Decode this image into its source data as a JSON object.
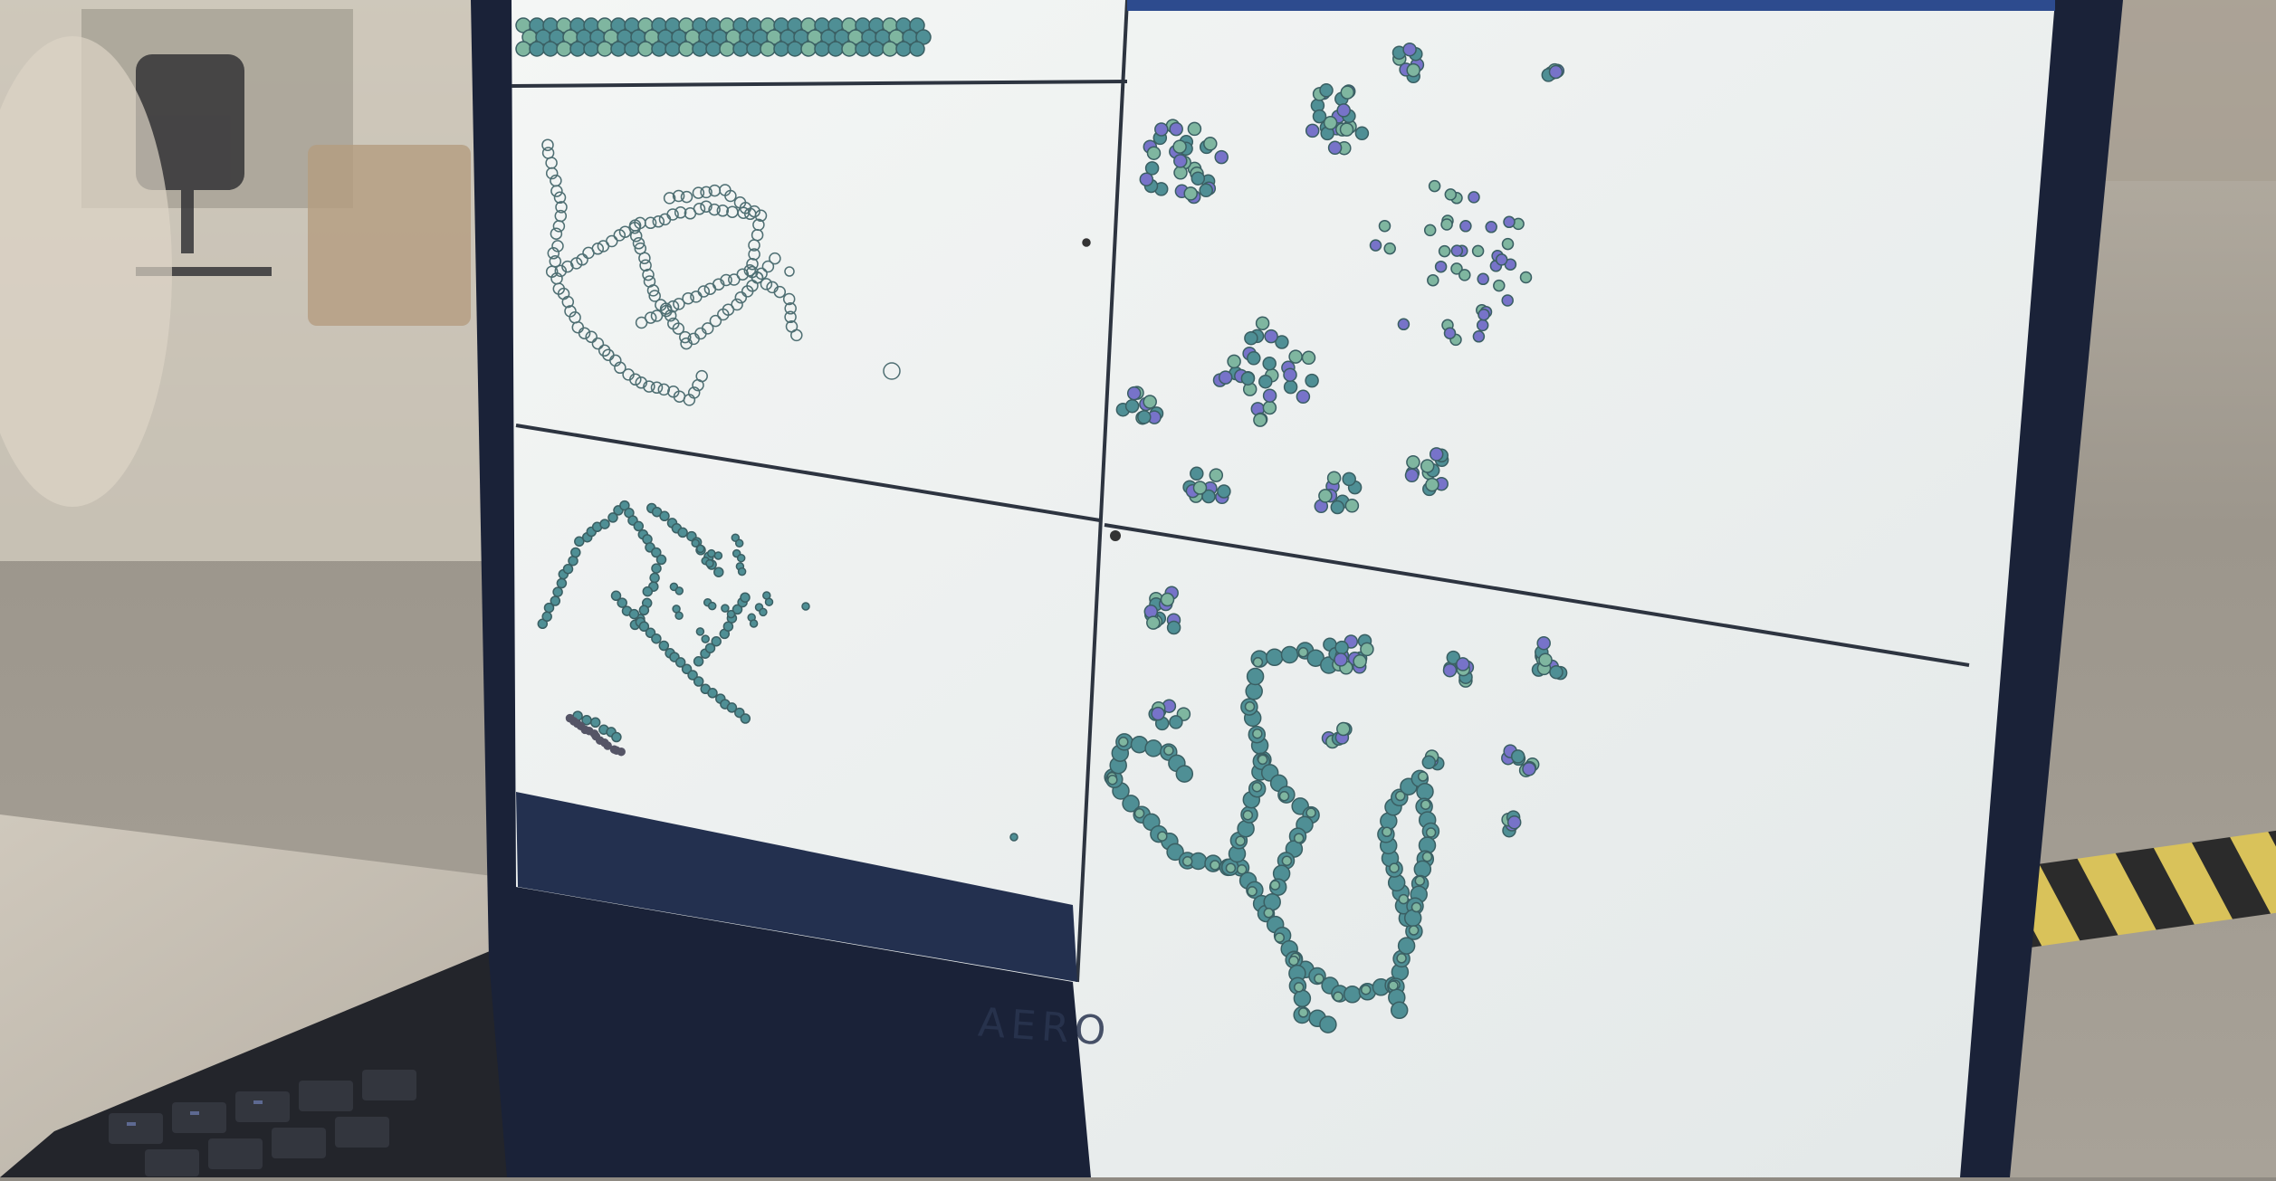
{
  "photo": {
    "subject": "laptop-screen-simulation-windows",
    "bezel_brand": "AERO",
    "window_title": "",
    "panels": [
      {
        "id": "top-strip",
        "content": "row-of-teal-hexagonal-cells"
      },
      {
        "id": "upper-left",
        "content": "outlined-cell-network"
      },
      {
        "id": "lower-left",
        "content": "scattered-teal-cell-chains"
      },
      {
        "id": "upper-right",
        "content": "teal-and-purple-cell-clusters"
      },
      {
        "id": "lower-right",
        "content": "connected-teal-cell-loops"
      }
    ],
    "colors": {
      "floor": "#8f8a82",
      "wall": "#c9c2b6",
      "bezel": "#1a2238",
      "screen": "#eef1f1",
      "cell_teal": "#4f8f95",
      "cell_green": "#7fb6a0",
      "cell_purple": "#7773c9",
      "keyboard": "#2a2c33"
    }
  }
}
